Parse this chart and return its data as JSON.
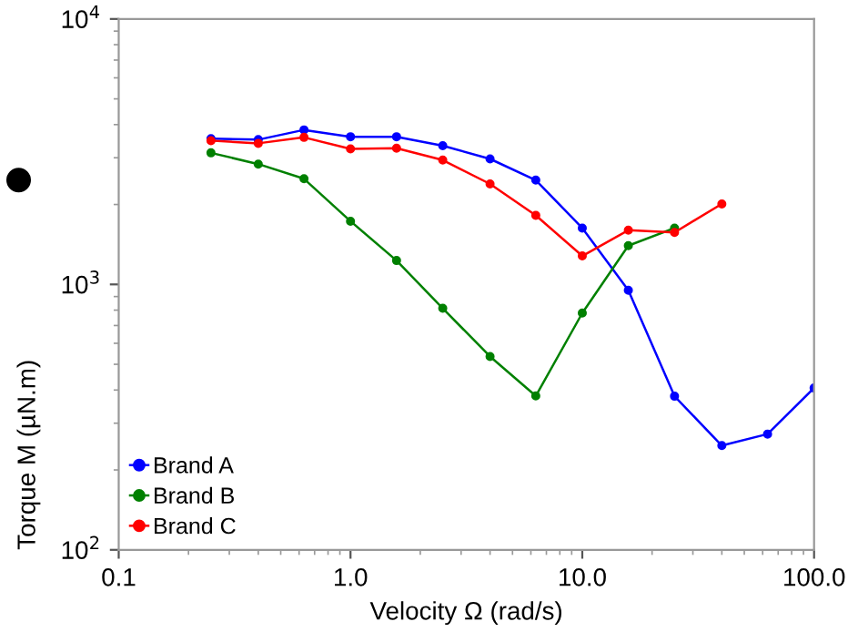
{
  "chart_data": {
    "type": "line",
    "xlabel": "Velocity Ω (rad/s)",
    "ylabel": "Torque M (µN.m)",
    "log": "xy",
    "xlim": [
      0.1,
      100
    ],
    "ylim": [
      100,
      10000
    ],
    "xticks": [
      {
        "value": 0.1,
        "label": "0.1"
      },
      {
        "value": 1,
        "label": "1.0"
      },
      {
        "value": 10,
        "label": "10.0"
      },
      {
        "value": 100,
        "label": "100.0"
      }
    ],
    "yticks": [
      {
        "value": 100,
        "label": "10$^{2}$"
      },
      {
        "value": 1000,
        "label": "10$^{3}$"
      },
      {
        "value": 10000,
        "label": "10$^{4}$"
      }
    ],
    "grid": false,
    "legend": "bottom left",
    "marker": "circle",
    "line_style": "solid",
    "series": [
      {
        "name": "Brand A",
        "color": "#0000ff",
        "x": [
          0.25,
          0.4,
          0.63,
          1.0,
          1.58,
          2.5,
          4,
          6.3,
          10,
          15.8,
          25,
          40,
          63,
          100
        ],
        "values": [
          3540,
          3510,
          3820,
          3600,
          3600,
          3330,
          2970,
          2470,
          1630,
          950,
          379,
          247,
          273,
          407
        ]
      },
      {
        "name": "Brand B",
        "color": "#008000",
        "x": [
          0.25,
          0.4,
          0.63,
          1.0,
          1.58,
          2.5,
          4,
          6.3,
          10,
          15.8,
          25
        ],
        "values": [
          3130,
          2840,
          2500,
          1730,
          1230,
          813,
          535,
          380,
          780,
          1400,
          1630
        ]
      },
      {
        "name": "Brand C",
        "color": "#ff0000",
        "x": [
          0.25,
          0.4,
          0.63,
          1.0,
          1.58,
          2.5,
          4,
          6.3,
          10,
          15.8,
          25,
          40
        ],
        "values": [
          3480,
          3400,
          3580,
          3240,
          3260,
          2940,
          2390,
          1820,
          1280,
          1600,
          1570,
          2010
        ]
      }
    ]
  }
}
